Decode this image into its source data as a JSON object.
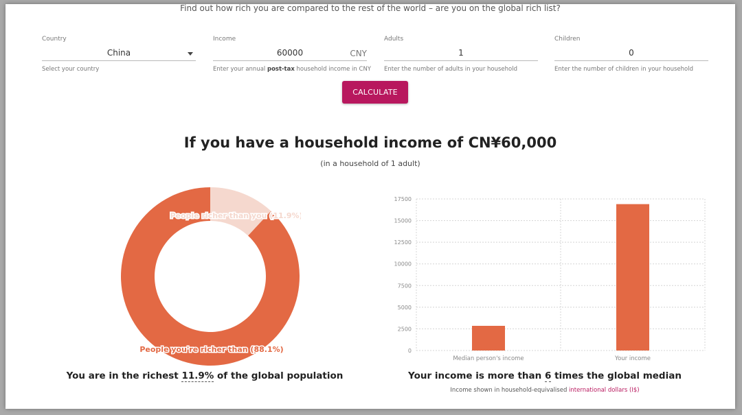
{
  "header": {
    "subtitle": "Find out how rich you are compared to the rest of the world – are you on the global rich list?"
  },
  "form": {
    "country": {
      "label": "Country",
      "value": "China",
      "hint": "Select your country"
    },
    "income": {
      "label": "Income",
      "value": "60000",
      "unit": "CNY",
      "hint_pre": "Enter your annual ",
      "hint_bold": "post-tax",
      "hint_post": " household income in CNY"
    },
    "adults": {
      "label": "Adults",
      "value": "1",
      "hint": "Enter the number of adults in your household"
    },
    "children": {
      "label": "Children",
      "value": "0",
      "hint": "Enter the number of children in your household"
    },
    "calculate_label": "CALCULATE"
  },
  "result": {
    "headline": "If you have a household income of CN¥60,000",
    "subhead": "(in a household of 1 adult)"
  },
  "colors": {
    "accent": "#b8185e",
    "series_main": "#e36944",
    "series_light": "#f5d8ce"
  },
  "chart_data": [
    {
      "type": "pie",
      "donut": true,
      "labels": [
        "People richer than you (11.9%)",
        "People you're richer than (88.1%)"
      ],
      "values": [
        11.9,
        88.1
      ],
      "colors": [
        "#f5d8ce",
        "#e36944"
      ]
    },
    {
      "type": "bar",
      "categories": [
        "Median person's income",
        "Your income"
      ],
      "values": [
        2850,
        16900
      ],
      "ylim": [
        0,
        17500
      ],
      "yticks": [
        "0",
        "2500",
        "5000",
        "7500",
        "10000",
        "12500",
        "15000",
        "17500"
      ],
      "grid": true,
      "color": "#e36944"
    }
  ],
  "captions": {
    "left_pre": "You are in the richest ",
    "left_em": "11.9%",
    "left_post": " of the global population",
    "right_pre": "Your income is more than ",
    "right_em": "6",
    "right_post": " times the global median",
    "footnote_pre": "Income shown in household-equivalised ",
    "footnote_link": "international dollars (I$)"
  }
}
